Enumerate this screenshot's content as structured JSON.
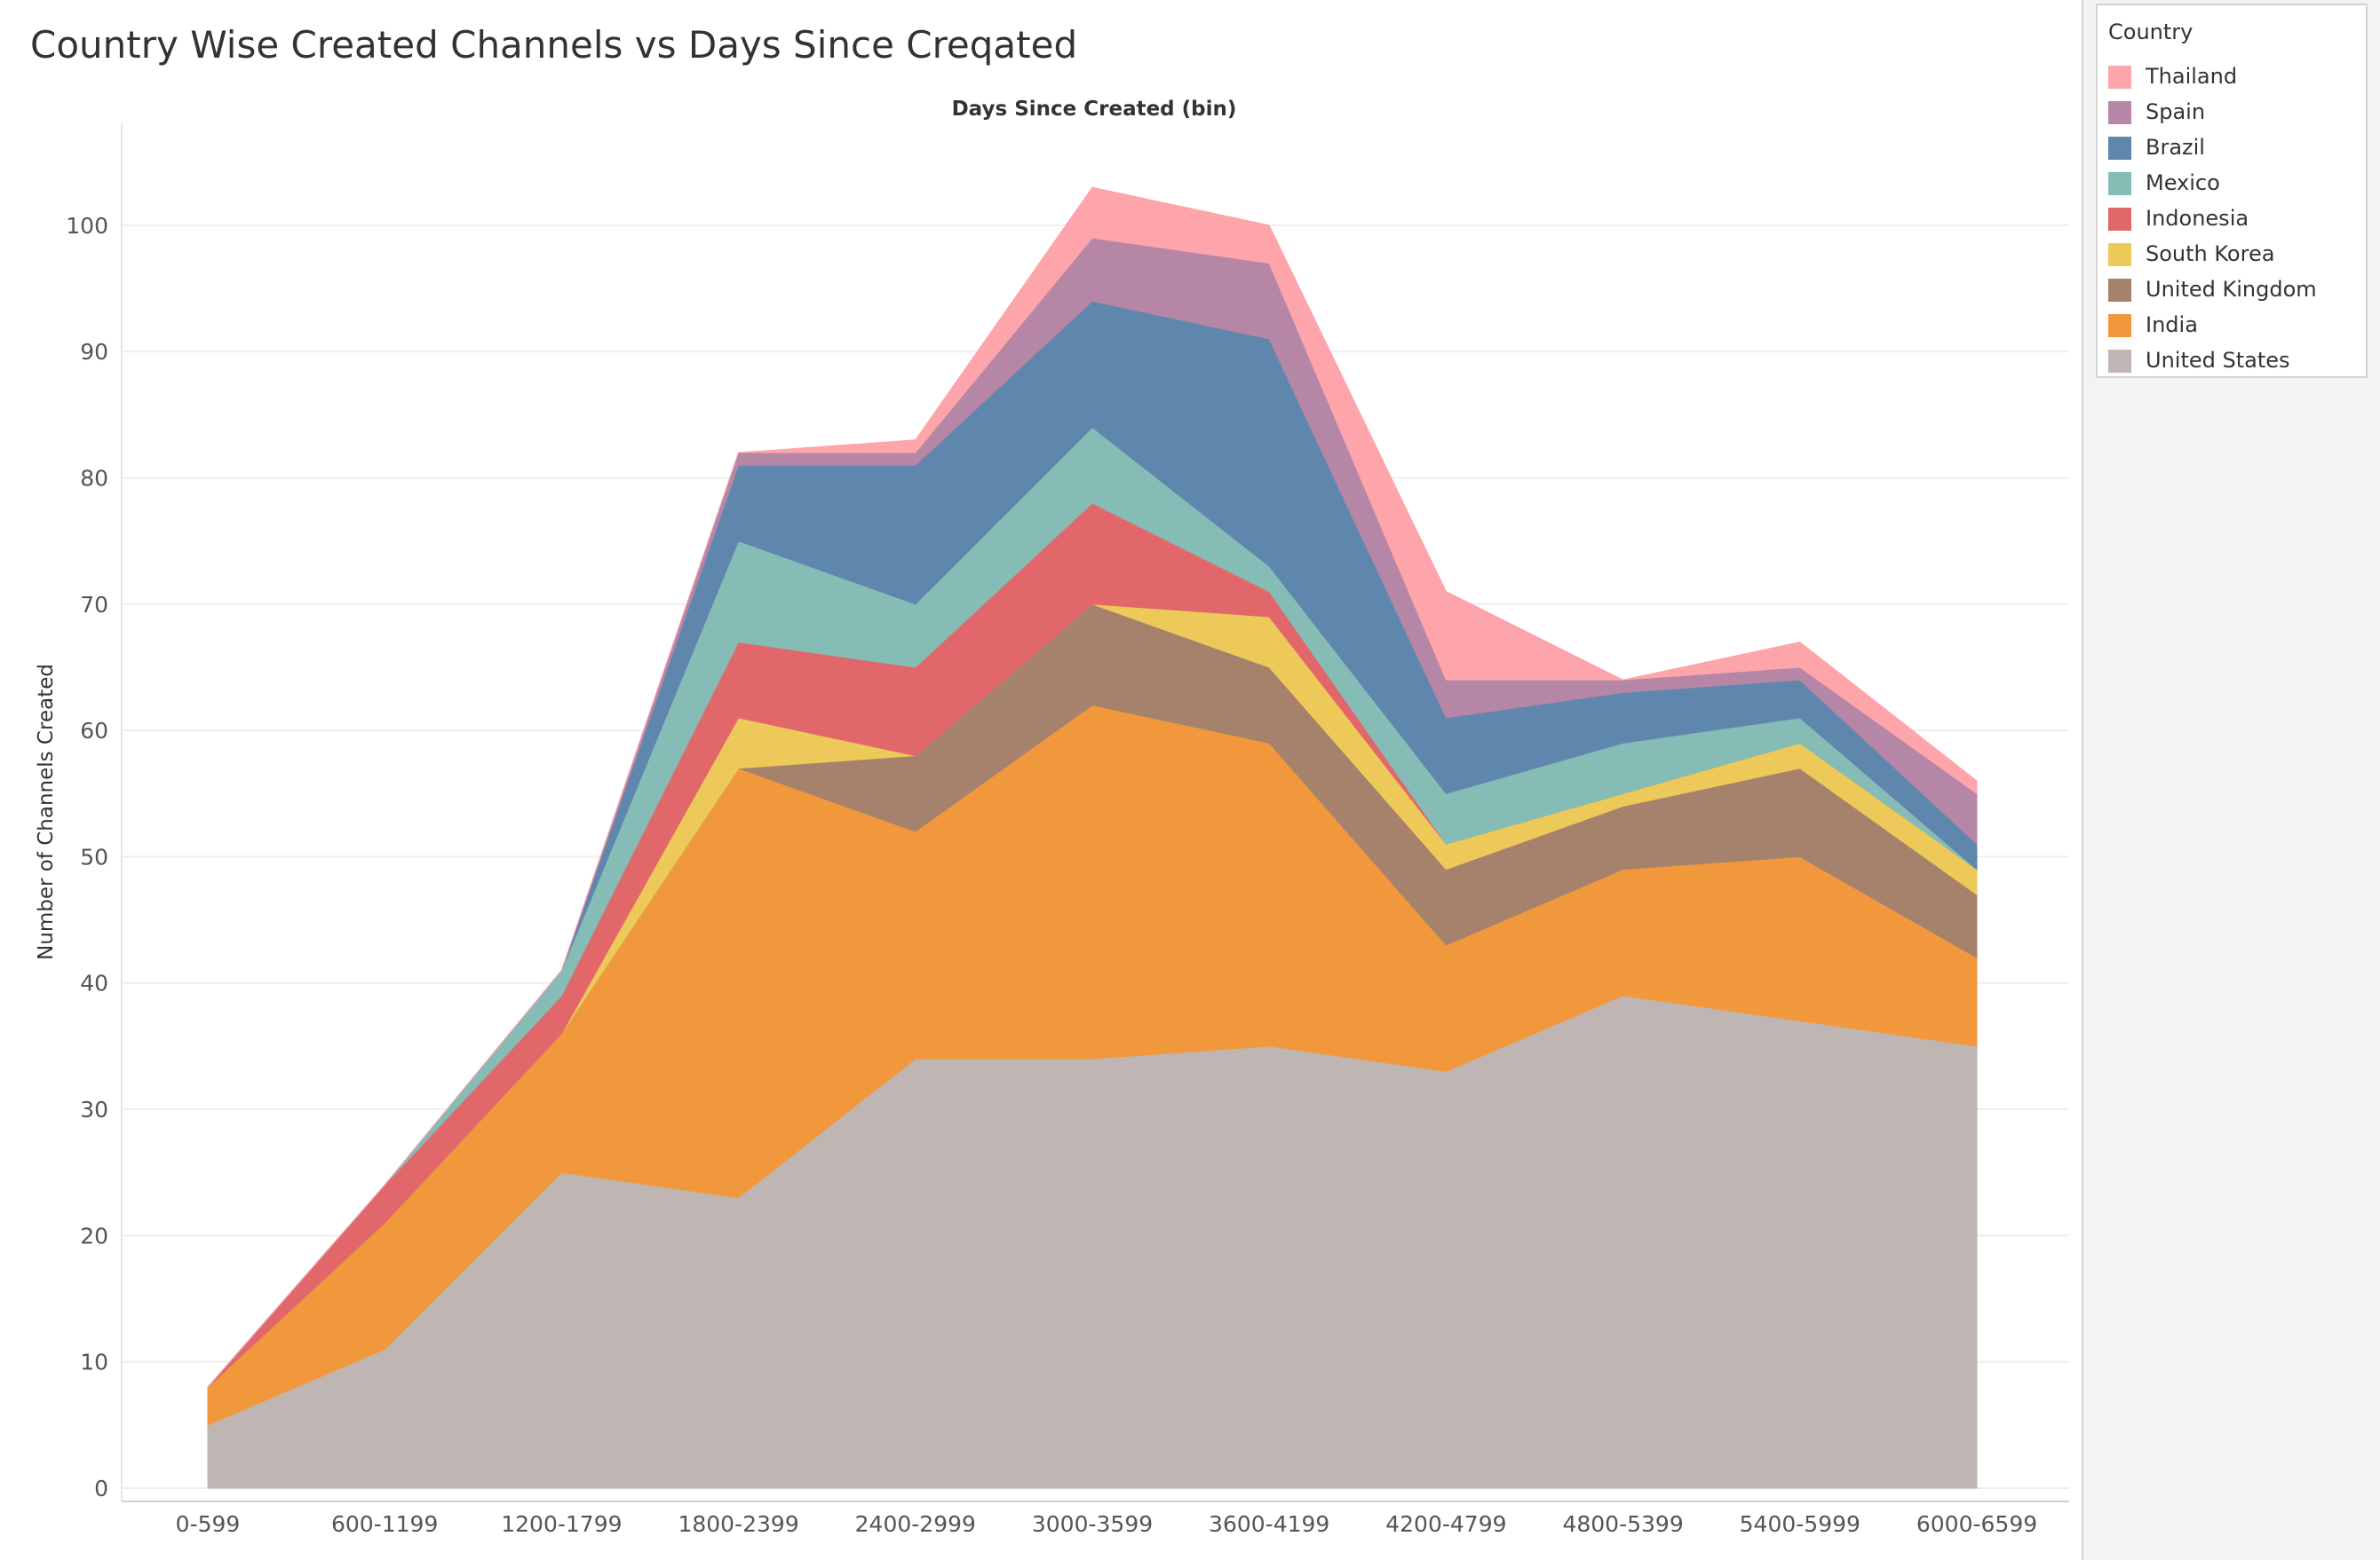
{
  "chart_data": {
    "type": "area",
    "stacked": true,
    "title": "Country Wise Created Channels vs Days Since Creqated",
    "xlabel": "Days Since Created (bin)",
    "ylabel": "Number of Channels Created",
    "ylim": [
      0,
      108
    ],
    "yticks": [
      0,
      10,
      20,
      30,
      40,
      50,
      60,
      70,
      80,
      90,
      100
    ],
    "grid": true,
    "legend_title": "Country",
    "legend_position": "right",
    "categories": [
      "0-599",
      "600-1199",
      "1200-1799",
      "1800-2399",
      "2400-2999",
      "3000-3599",
      "3600-4199",
      "4200-4799",
      "4800-5399",
      "5400-5999",
      "6000-6599"
    ],
    "series": [
      {
        "name": "United States",
        "color": "#bfb5b2",
        "values": [
          5,
          11,
          25,
          23,
          34,
          34,
          35,
          33,
          39,
          37,
          35
        ]
      },
      {
        "name": "India",
        "color": "#f1983d",
        "values": [
          3,
          10,
          11,
          34,
          18,
          28,
          24,
          10,
          10,
          13,
          7
        ]
      },
      {
        "name": "United Kingdom",
        "color": "#a6826d",
        "values": [
          0,
          0,
          0,
          0,
          6,
          8,
          6,
          6,
          5,
          7,
          5
        ]
      },
      {
        "name": "South Korea",
        "color": "#ecc958",
        "values": [
          0,
          0,
          0,
          4,
          0,
          0,
          4,
          2,
          1,
          2,
          2
        ]
      },
      {
        "name": "Indonesia",
        "color": "#e2676a",
        "values": [
          0,
          3,
          3,
          6,
          7,
          8,
          2,
          0,
          0,
          0,
          0
        ]
      },
      {
        "name": "Mexico",
        "color": "#86bcb6",
        "values": [
          0,
          0,
          2,
          8,
          5,
          6,
          2,
          4,
          4,
          2,
          0
        ]
      },
      {
        "name": "Brazil",
        "color": "#5f87ad",
        "values": [
          0,
          0,
          0,
          6,
          11,
          10,
          18,
          6,
          4,
          3,
          2
        ]
      },
      {
        "name": "Spain",
        "color": "#b686a7",
        "values": [
          0,
          0,
          0,
          1,
          1,
          5,
          6,
          3,
          1,
          1,
          4
        ]
      },
      {
        "name": "Thailand",
        "color": "#fda5ab",
        "values": [
          0,
          0,
          0,
          0,
          1,
          4,
          3,
          7,
          0,
          2,
          1
        ]
      }
    ],
    "legend_order": [
      "Thailand",
      "Spain",
      "Brazil",
      "Mexico",
      "Indonesia",
      "South Korea",
      "United Kingdom",
      "India",
      "United States"
    ]
  }
}
